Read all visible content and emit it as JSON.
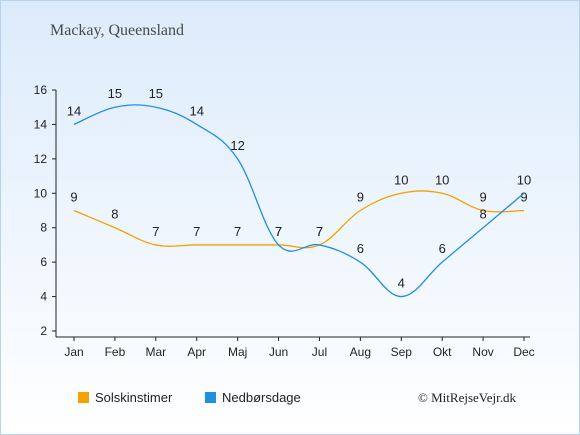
{
  "chart_data": {
    "type": "line",
    "title": "Mackay, Queensland",
    "categories": [
      "Jan",
      "Feb",
      "Mar",
      "Apr",
      "Maj",
      "Jun",
      "Jul",
      "Aug",
      "Sep",
      "Okt",
      "Nov",
      "Dec"
    ],
    "ylim": [
      2,
      16
    ],
    "yticks": [
      2,
      4,
      6,
      8,
      10,
      12,
      14,
      16
    ],
    "series": [
      {
        "name": "Solskinstimer",
        "color": "#f5a100",
        "values": [
          9,
          8,
          7,
          7,
          7,
          7,
          7,
          9,
          10,
          10,
          9,
          9
        ]
      },
      {
        "name": "Nedbørsdage",
        "color": "#1f8fe0",
        "values": [
          14,
          15,
          15,
          14,
          12,
          7,
          7,
          6,
          4,
          6,
          8,
          10
        ]
      }
    ],
    "legend_position": "bottom-left",
    "credit": "© MitRejseVejr.dk"
  }
}
